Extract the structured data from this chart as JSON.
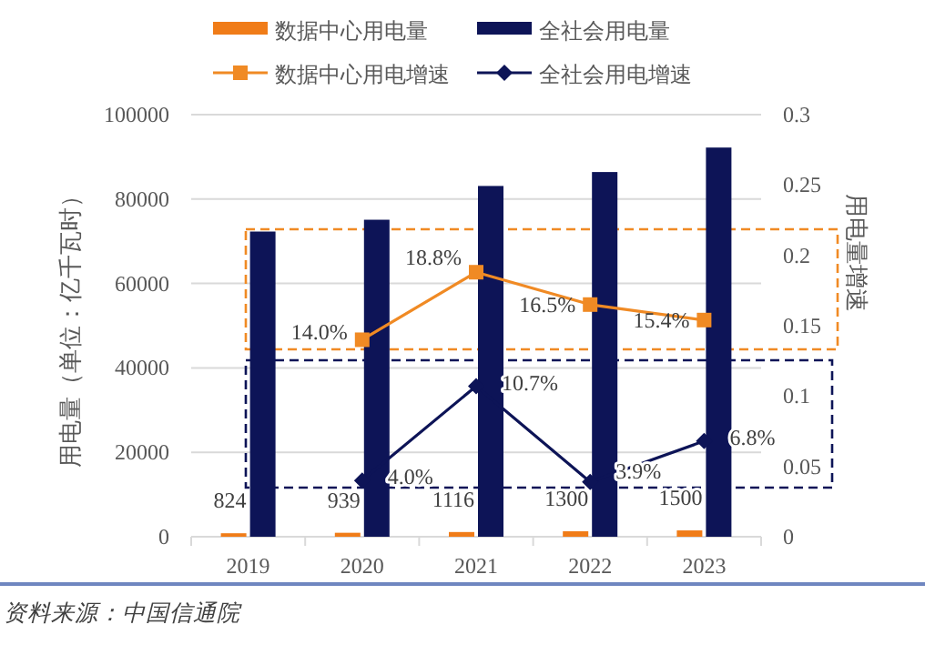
{
  "chart_data": {
    "type": "bar",
    "categories": [
      "2019",
      "2020",
      "2021",
      "2022",
      "2023"
    ],
    "series": [
      {
        "name": "数据中心用电量",
        "color": "#f07c18",
        "values": [
          824,
          939,
          1116,
          1300,
          1500
        ],
        "value_labels": [
          "824",
          "939",
          "1116",
          "1300",
          "1500"
        ]
      },
      {
        "name": "全社会用电量",
        "color": "#0d1457",
        "values": [
          72300,
          75100,
          83100,
          86400,
          92200
        ]
      },
      {
        "name": "数据中心用电增速",
        "type": "line",
        "axis": "y2",
        "marker": "square",
        "color": "#f08a24",
        "values": [
          null,
          0.14,
          0.188,
          0.165,
          0.154
        ],
        "value_labels": [
          null,
          "14.0%",
          "18.8%",
          "16.5%",
          "15.4%"
        ]
      },
      {
        "name": "全社会用电增速",
        "type": "line",
        "axis": "y2",
        "marker": "diamond",
        "color": "#0d1457",
        "values": [
          null,
          0.04,
          0.107,
          0.039,
          0.068
        ],
        "value_labels": [
          null,
          "4.0%",
          "10.7%",
          "3.9%",
          "6.8%"
        ]
      }
    ],
    "ylim": [
      0,
      100000
    ],
    "yticks": [
      0,
      20000,
      40000,
      60000,
      80000,
      100000
    ],
    "y2lim": [
      0,
      0.3
    ],
    "y2ticks": [
      0,
      0.05,
      0.1,
      0.15,
      0.2,
      0.25,
      0.3
    ],
    "ylabel": "用电量（单位：亿千瓦时）",
    "y2label": "用电量增速",
    "grid": "y",
    "legend": "top",
    "annotations": [
      "资料来源：中国信通院"
    ]
  }
}
